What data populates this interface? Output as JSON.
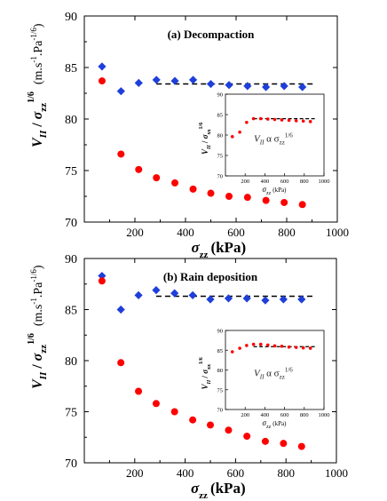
{
  "chart_data": [
    {
      "type": "scatter",
      "panel": "top",
      "title": "(a) Decompaction",
      "xlabel": "σzz (kPa)",
      "ylabel": "V_II / σzz^1/6 (m.s^-1.Pa^-1/6)",
      "xlim": [
        0,
        1000
      ],
      "ylim": [
        70,
        90
      ],
      "xticks": [
        200,
        400,
        600,
        800,
        1000
      ],
      "yticks": [
        70,
        75,
        80,
        85,
        90
      ],
      "grid": false,
      "legend": "none",
      "series": [
        {
          "marker": "diamond",
          "color": "#1f3fd9",
          "x": [
            70,
            145,
            215,
            285,
            358,
            430,
            500,
            572,
            645,
            718,
            790,
            862
          ],
          "y": [
            85.1,
            82.7,
            83.5,
            83.8,
            83.7,
            83.8,
            83.4,
            83.3,
            83.2,
            83.1,
            83.2,
            83.1
          ]
        },
        {
          "marker": "circle",
          "color": "#ff0000",
          "x": [
            70,
            145,
            215,
            285,
            358,
            430,
            500,
            572,
            645,
            718,
            790,
            862
          ],
          "y": [
            83.7,
            76.6,
            75.1,
            74.3,
            73.8,
            73.2,
            72.8,
            72.5,
            72.4,
            72.1,
            71.9,
            71.7
          ]
        }
      ],
      "reference_line": {
        "style": "dashed",
        "color": "#000000",
        "x": [
          285,
          910
        ],
        "y": [
          83.4,
          83.4
        ]
      },
      "inset": {
        "annotation": "V_II α σ_zz^1/6",
        "xlabel": "σ_zz (kPa)",
        "ylabel": "V_II / σ_xx^1/6",
        "xlim": [
          0,
          1000
        ],
        "ylim": [
          70,
          90
        ],
        "xticks": [
          200,
          400,
          600,
          800,
          1000
        ],
        "yticks": [
          70,
          75,
          80,
          85,
          90
        ],
        "series": [
          {
            "marker": "circle",
            "color": "#ff0000",
            "x": [
              70,
              145,
              215,
              285,
              358,
              430,
              500,
              572,
              645,
              718,
              790,
              862
            ],
            "y": [
              79.6,
              80.7,
              83.1,
              84.0,
              84.0,
              83.9,
              83.8,
              83.7,
              83.6,
              83.5,
              83.4,
              83.3
            ]
          }
        ],
        "reference_line": {
          "style": "dashed",
          "color": "#000000",
          "x": [
            285,
            910
          ],
          "y": [
            84.0,
            84.0
          ]
        }
      }
    },
    {
      "type": "scatter",
      "panel": "bottom",
      "title": "(b) Rain deposition",
      "xlabel": "σzz (kPa)",
      "ylabel": "V_II / σzz^1/6 (m.s^-1.Pa^-1/6)",
      "xlim": [
        0,
        1000
      ],
      "ylim": [
        70,
        90
      ],
      "xticks": [
        200,
        400,
        600,
        800,
        1000
      ],
      "yticks": [
        70,
        75,
        80,
        85,
        90
      ],
      "grid": false,
      "legend": "none",
      "series": [
        {
          "marker": "diamond",
          "color": "#1f3fd9",
          "x": [
            70,
            145,
            215,
            285,
            358,
            430,
            500,
            572,
            645,
            718,
            790,
            862
          ],
          "y": [
            88.3,
            85.0,
            86.4,
            86.9,
            86.6,
            86.4,
            86.0,
            86.1,
            86.1,
            85.9,
            86.0,
            86.0
          ]
        },
        {
          "marker": "circle",
          "color": "#ff0000",
          "x": [
            70,
            145,
            215,
            285,
            358,
            430,
            500,
            572,
            645,
            718,
            790,
            862
          ],
          "y": [
            87.8,
            79.8,
            77.0,
            75.8,
            75.0,
            74.2,
            73.7,
            73.2,
            72.6,
            72.1,
            71.9,
            71.6
          ]
        }
      ],
      "reference_line": {
        "style": "dashed",
        "color": "#000000",
        "x": [
          285,
          910
        ],
        "y": [
          86.3,
          86.3
        ]
      },
      "inset": {
        "annotation": "V_II α σ_zz^1/6",
        "xlabel": "σ_zz (kPa)",
        "ylabel": "V_II / σ_xx^1/6",
        "xlim": [
          0,
          1000
        ],
        "ylim": [
          70,
          90
        ],
        "xticks": [
          200,
          400,
          600,
          800,
          1000
        ],
        "yticks": [
          70,
          75,
          80,
          85,
          90
        ],
        "series": [
          {
            "marker": "circle",
            "color": "#ff0000",
            "x": [
              70,
              145,
              215,
              285,
              358,
              430,
              500,
              572,
              645,
              718,
              790,
              862
            ],
            "y": [
              84.6,
              85.5,
              86.2,
              86.5,
              86.5,
              86.3,
              86.1,
              86.0,
              85.8,
              85.7,
              85.6,
              85.5
            ]
          }
        ],
        "reference_line": {
          "style": "dashed",
          "color": "#000000",
          "x": [
            285,
            910
          ],
          "y": [
            85.9,
            85.9
          ]
        }
      }
    }
  ]
}
